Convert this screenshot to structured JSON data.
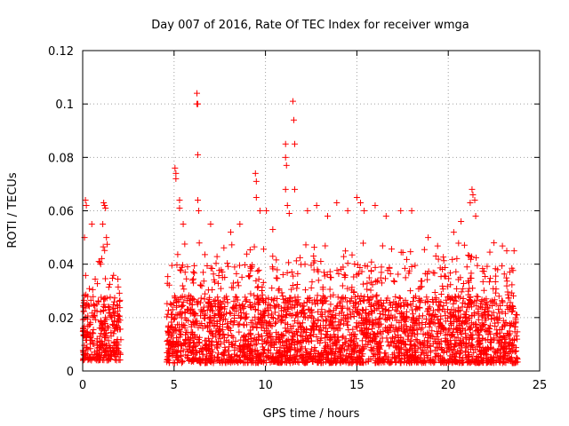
{
  "chart_data": {
    "type": "scatter",
    "title": "Day 007 of 2016, Rate Of TEC Index for receiver wmga",
    "xlabel": "GPS time / hours",
    "ylabel": "ROTI / TECUs",
    "xlim": [
      0,
      25
    ],
    "ylim": [
      0,
      0.12
    ],
    "xticks": [
      0,
      5,
      10,
      15,
      20,
      25
    ],
    "yticks": [
      0,
      0.02,
      0.04,
      0.06,
      0.08,
      0.1,
      0.12
    ],
    "xtick_labels": [
      "0",
      "5",
      "10",
      "15",
      "20",
      "25"
    ],
    "ytick_labels": [
      "0",
      "0.02",
      "0.04",
      "0.06",
      "0.08",
      "0.1",
      "0.12"
    ],
    "grid": true,
    "marker": "+",
    "color": "#ff0000",
    "series": [
      {
        "values_description": "dense ROTI point cloud",
        "segments": [
          {
            "x_start": 0.0,
            "x_end": 2.1,
            "y_min": 0.004,
            "y_typical_max": 0.035
          },
          {
            "x_start": 4.6,
            "x_end": 23.8,
            "y_min": 0.003,
            "y_typical_max": 0.04
          }
        ],
        "notable_points": [
          {
            "x": 0.15,
            "y": 0.064
          },
          {
            "x": 0.2,
            "y": 0.062
          },
          {
            "x": 0.1,
            "y": 0.05
          },
          {
            "x": 0.5,
            "y": 0.055
          },
          {
            "x": 1.15,
            "y": 0.063
          },
          {
            "x": 1.2,
            "y": 0.062
          },
          {
            "x": 1.25,
            "y": 0.061
          },
          {
            "x": 1.1,
            "y": 0.055
          },
          {
            "x": 1.3,
            "y": 0.05
          },
          {
            "x": 5.05,
            "y": 0.076
          },
          {
            "x": 5.1,
            "y": 0.074
          },
          {
            "x": 5.1,
            "y": 0.072
          },
          {
            "x": 5.3,
            "y": 0.064
          },
          {
            "x": 5.5,
            "y": 0.055
          },
          {
            "x": 5.3,
            "y": 0.061
          },
          {
            "x": 6.25,
            "y": 0.104
          },
          {
            "x": 6.3,
            "y": 0.1
          },
          {
            "x": 6.25,
            "y": 0.1
          },
          {
            "x": 6.3,
            "y": 0.081
          },
          {
            "x": 6.3,
            "y": 0.064
          },
          {
            "x": 6.35,
            "y": 0.06
          },
          {
            "x": 7.0,
            "y": 0.055
          },
          {
            "x": 8.1,
            "y": 0.052
          },
          {
            "x": 8.6,
            "y": 0.055
          },
          {
            "x": 9.45,
            "y": 0.074
          },
          {
            "x": 9.5,
            "y": 0.071
          },
          {
            "x": 9.5,
            "y": 0.065
          },
          {
            "x": 9.7,
            "y": 0.06
          },
          {
            "x": 10.05,
            "y": 0.06
          },
          {
            "x": 10.4,
            "y": 0.053
          },
          {
            "x": 11.1,
            "y": 0.085
          },
          {
            "x": 11.1,
            "y": 0.08
          },
          {
            "x": 11.15,
            "y": 0.077
          },
          {
            "x": 11.1,
            "y": 0.068
          },
          {
            "x": 11.2,
            "y": 0.062
          },
          {
            "x": 11.3,
            "y": 0.059
          },
          {
            "x": 11.5,
            "y": 0.101
          },
          {
            "x": 11.55,
            "y": 0.094
          },
          {
            "x": 11.6,
            "y": 0.085
          },
          {
            "x": 11.6,
            "y": 0.068
          },
          {
            "x": 12.3,
            "y": 0.06
          },
          {
            "x": 12.8,
            "y": 0.062
          },
          {
            "x": 13.4,
            "y": 0.058
          },
          {
            "x": 13.9,
            "y": 0.063
          },
          {
            "x": 14.5,
            "y": 0.06
          },
          {
            "x": 15.0,
            "y": 0.065
          },
          {
            "x": 15.2,
            "y": 0.063
          },
          {
            "x": 15.4,
            "y": 0.06
          },
          {
            "x": 16.0,
            "y": 0.062
          },
          {
            "x": 16.6,
            "y": 0.058
          },
          {
            "x": 17.4,
            "y": 0.06
          },
          {
            "x": 18.0,
            "y": 0.06
          },
          {
            "x": 18.9,
            "y": 0.05
          },
          {
            "x": 20.3,
            "y": 0.052
          },
          {
            "x": 20.7,
            "y": 0.056
          },
          {
            "x": 21.2,
            "y": 0.063
          },
          {
            "x": 21.3,
            "y": 0.068
          },
          {
            "x": 21.35,
            "y": 0.066
          },
          {
            "x": 21.45,
            "y": 0.064
          },
          {
            "x": 21.5,
            "y": 0.058
          },
          {
            "x": 22.5,
            "y": 0.048
          },
          {
            "x": 23.2,
            "y": 0.045
          },
          {
            "x": 23.6,
            "y": 0.045
          }
        ]
      }
    ]
  }
}
